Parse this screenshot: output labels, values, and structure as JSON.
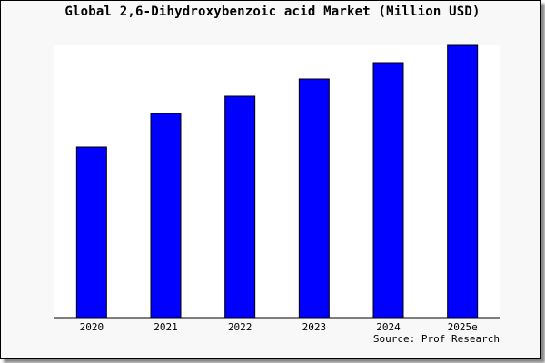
{
  "chart_data": {
    "type": "bar",
    "title": "Global 2,6-Dihydroxybenzoic acid Market (Million USD)",
    "categories": [
      "2020",
      "2021",
      "2022",
      "2023",
      "2024",
      "2025e"
    ],
    "values": [
      188,
      225,
      244,
      263,
      281,
      300
    ],
    "ylim": [
      0,
      300
    ],
    "xlabel": "",
    "ylabel": "",
    "grid": false,
    "bar_color": "#0000ff",
    "source": "Source: Prof Research"
  }
}
